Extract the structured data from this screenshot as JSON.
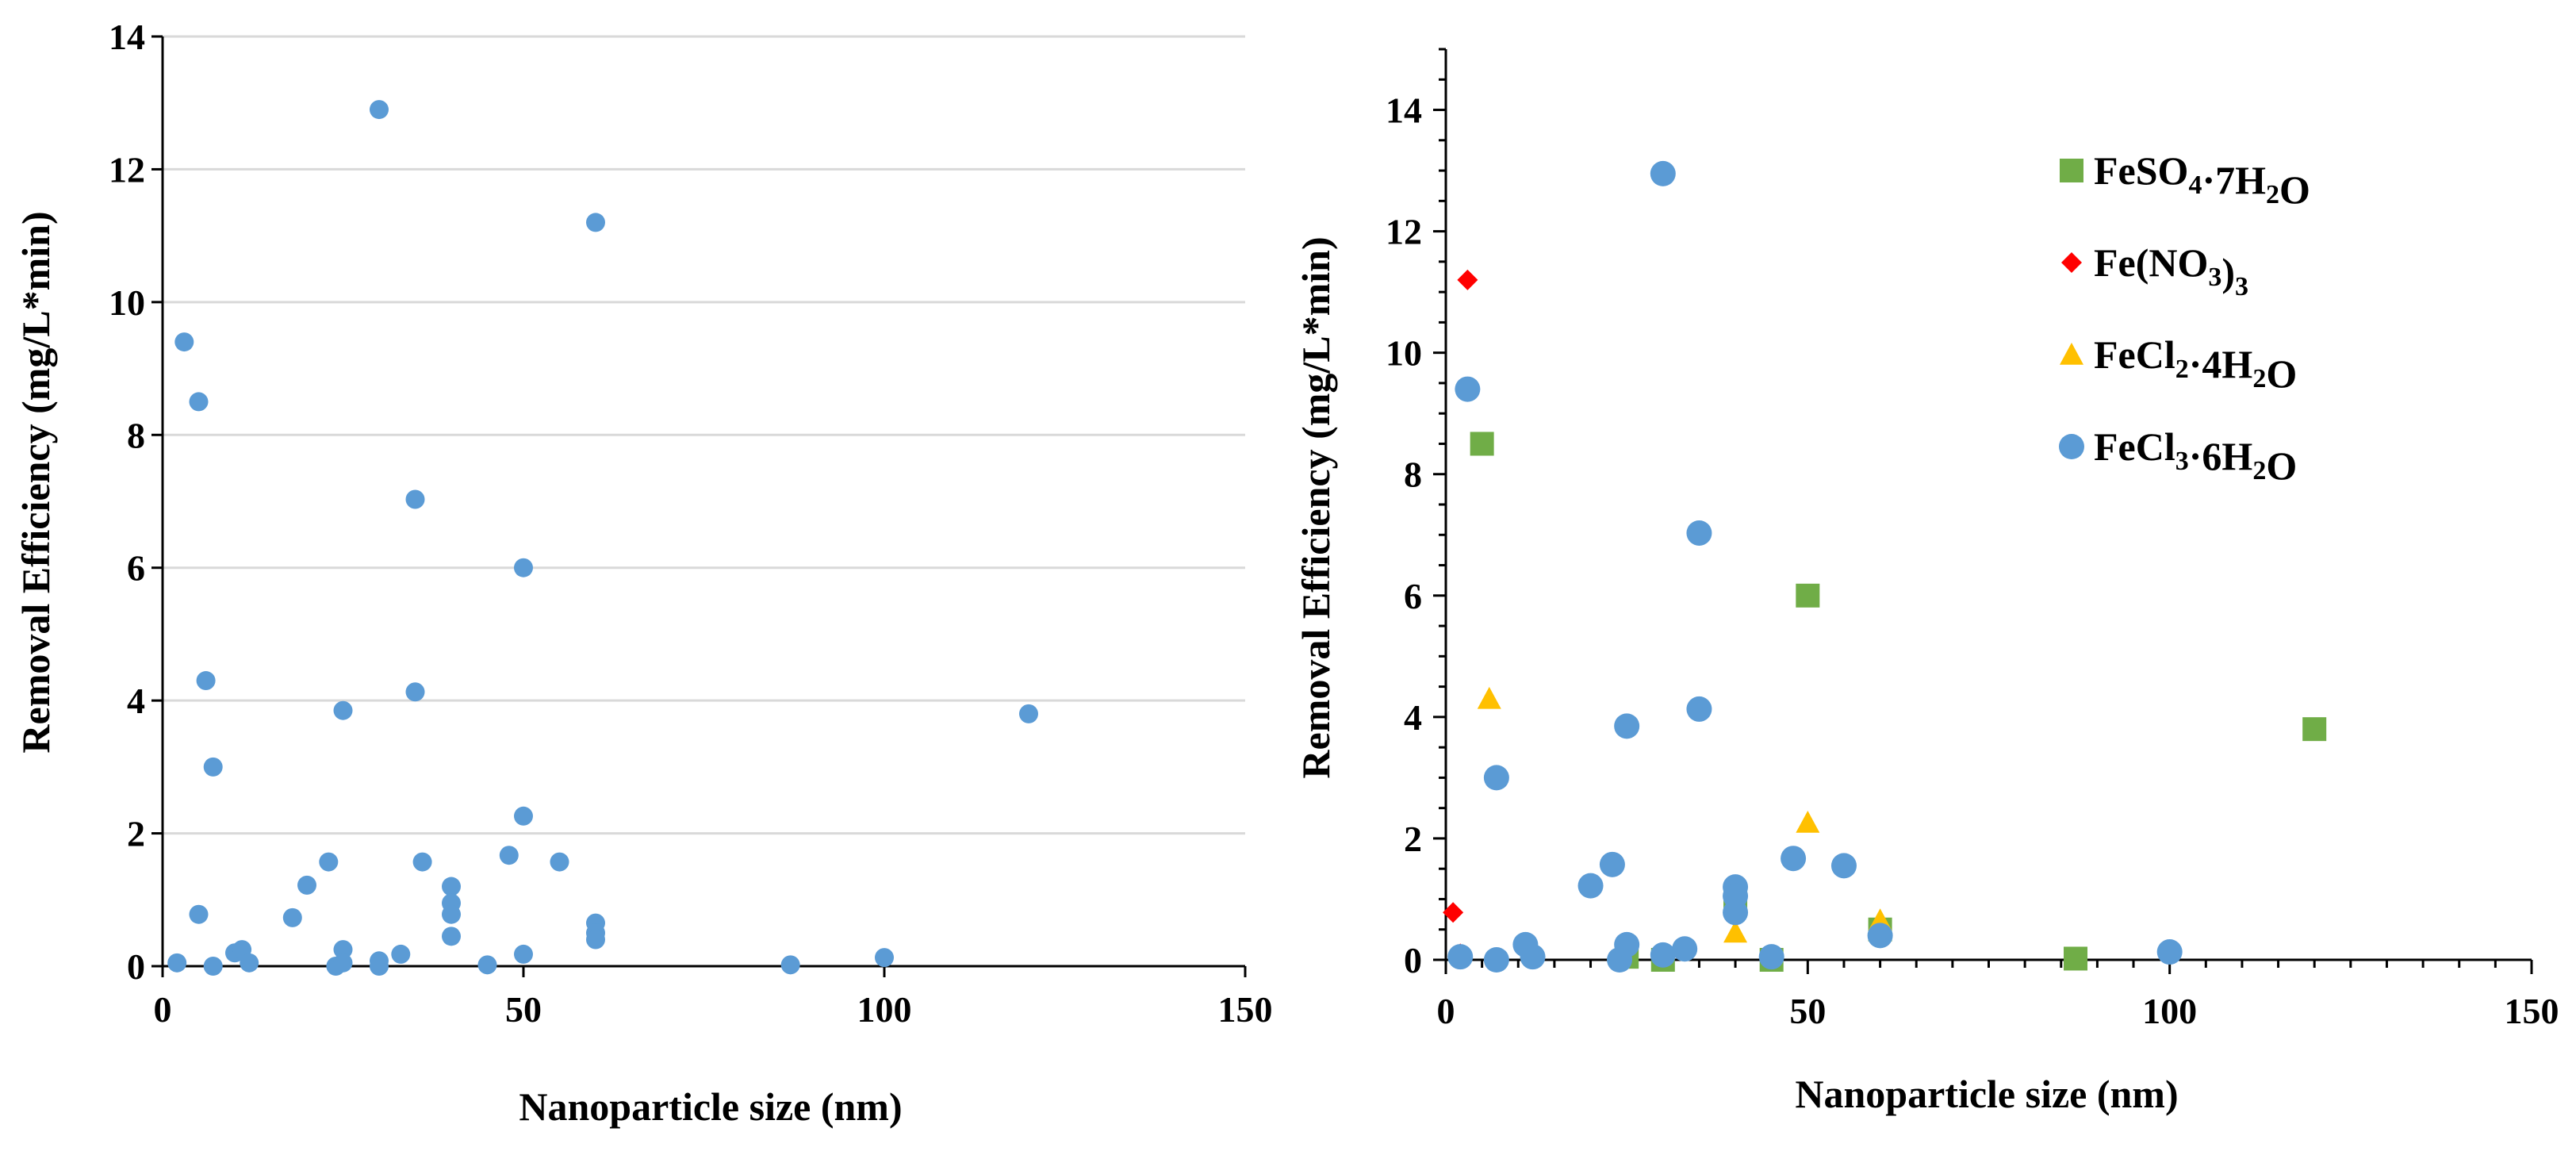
{
  "chart_data": [
    {
      "type": "scatter",
      "title": "",
      "xlabel": "Nanoparticle size (nm)",
      "ylabel": "Removal Efficiency (mg/L*min)",
      "xlim": [
        0,
        150
      ],
      "ylim": [
        0,
        14
      ],
      "xticks": [
        0,
        50,
        100,
        150
      ],
      "yticks": [
        0,
        2,
        4,
        6,
        8,
        10,
        12,
        14
      ],
      "grid": true,
      "color": "#5b9bd5",
      "series": [
        {
          "name": "All data",
          "points": [
            [
              2,
              0.05
            ],
            [
              3,
              9.4
            ],
            [
              5,
              8.5
            ],
            [
              5,
              0.78
            ],
            [
              6,
              4.3
            ],
            [
              7,
              3.0
            ],
            [
              7,
              0.0
            ],
            [
              10,
              0.2
            ],
            [
              11,
              0.25
            ],
            [
              12,
              0.05
            ],
            [
              18,
              0.73
            ],
            [
              20,
              1.22
            ],
            [
              23,
              1.57
            ],
            [
              24,
              0.0
            ],
            [
              25,
              3.85
            ],
            [
              25,
              0.25
            ],
            [
              25,
              0.05
            ],
            [
              30,
              12.9
            ],
            [
              30,
              0.08
            ],
            [
              30,
              0.0
            ],
            [
              33,
              0.18
            ],
            [
              35,
              7.03
            ],
            [
              35,
              4.13
            ],
            [
              36,
              1.57
            ],
            [
              40,
              1.2
            ],
            [
              40,
              0.95
            ],
            [
              40,
              0.78
            ],
            [
              40,
              0.45
            ],
            [
              45,
              0.02
            ],
            [
              48,
              1.67
            ],
            [
              50,
              6.0
            ],
            [
              50,
              2.26
            ],
            [
              50,
              0.18
            ],
            [
              55,
              1.57
            ],
            [
              60,
              11.2
            ],
            [
              60,
              0.65
            ],
            [
              60,
              0.5
            ],
            [
              60,
              0.4
            ],
            [
              87,
              0.02
            ],
            [
              100,
              0.13
            ],
            [
              120,
              3.8
            ]
          ]
        }
      ]
    },
    {
      "type": "scatter",
      "title": "",
      "xlabel": "Nanoparticle size (nm)",
      "ylabel": "Removal Efficiency (mg/L*min)",
      "xlim": [
        0,
        150
      ],
      "ylim": [
        0,
        15
      ],
      "xticks": [
        0,
        50,
        100,
        150
      ],
      "yticks": [
        0,
        2,
        4,
        6,
        8,
        10,
        12,
        14
      ],
      "grid": false,
      "legend_position": "top-right",
      "series": [
        {
          "name": "FeSO4·7H2O",
          "legend": {
            "base": "FeSO",
            "sub1": "4",
            "mid": "·7H",
            "sub2": "2",
            "end": "O"
          },
          "marker": "square",
          "color": "#70ad47",
          "points": [
            [
              5,
              8.5
            ],
            [
              25,
              0.05
            ],
            [
              30,
              0.0
            ],
            [
              40,
              0.95
            ],
            [
              45,
              0.0
            ],
            [
              50,
              6.0
            ],
            [
              60,
              0.5
            ],
            [
              87,
              0.02
            ],
            [
              120,
              3.8
            ]
          ]
        },
        {
          "name": "Fe(NO3)3",
          "legend": {
            "base": "Fe(NO",
            "sub1": "3",
            "mid": ")",
            "sub2": "3",
            "end": ""
          },
          "marker": "diamond",
          "color": "#ff0000",
          "points": [
            [
              1,
              0.78
            ],
            [
              2,
              0.1
            ],
            [
              3,
              11.2
            ]
          ]
        },
        {
          "name": "FeCl2·4H2O",
          "legend": {
            "base": "FeCl",
            "sub1": "2",
            "mid": "·4H",
            "sub2": "2",
            "end": "O"
          },
          "marker": "triangle",
          "color": "#ffc000",
          "points": [
            [
              6,
              4.3
            ],
            [
              40,
              0.45
            ],
            [
              50,
              2.26
            ],
            [
              60,
              0.65
            ]
          ]
        },
        {
          "name": "FeCl3·6H2O",
          "legend": {
            "base": "FeCl",
            "sub1": "3",
            "mid": "·6H",
            "sub2": "2",
            "end": "O"
          },
          "marker": "circle",
          "color": "#5b9bd5",
          "points": [
            [
              2,
              0.05
            ],
            [
              3,
              9.4
            ],
            [
              7,
              3.0
            ],
            [
              7,
              0.0
            ],
            [
              11,
              0.25
            ],
            [
              12,
              0.05
            ],
            [
              20,
              1.22
            ],
            [
              23,
              1.57
            ],
            [
              24,
              0.0
            ],
            [
              25,
              3.85
            ],
            [
              25,
              0.25
            ],
            [
              30,
              12.95
            ],
            [
              30,
              0.08
            ],
            [
              33,
              0.18
            ],
            [
              35,
              7.03
            ],
            [
              35,
              4.13
            ],
            [
              40,
              1.2
            ],
            [
              40,
              1.05
            ],
            [
              40,
              0.78
            ],
            [
              45,
              0.05
            ],
            [
              48,
              1.67
            ],
            [
              55,
              1.55
            ],
            [
              60,
              0.4
            ],
            [
              100,
              0.13
            ]
          ]
        }
      ]
    }
  ]
}
